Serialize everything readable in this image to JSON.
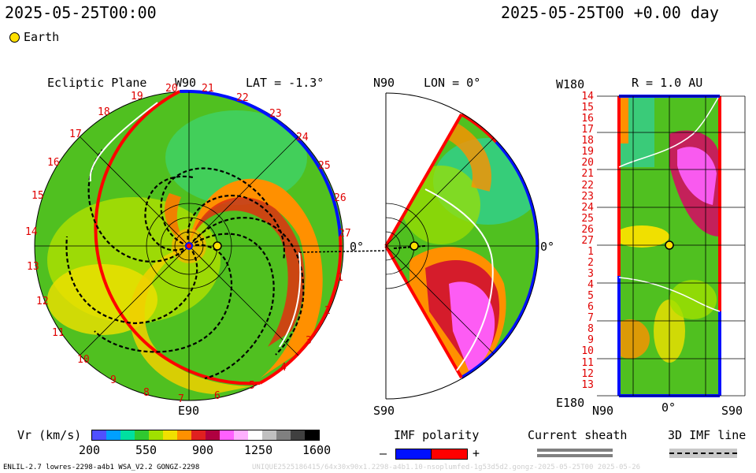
{
  "header": {
    "date_left": "2025-05-25T00:00",
    "date_right": "2025-05-25T00 +0.00 day",
    "legend_label": "Earth"
  },
  "ecliptic": {
    "title": "Ecliptic Plane",
    "top_label": "W90",
    "lat_label": "LAT = -1.3°",
    "bottom_label": "E90",
    "zero_label": "0°",
    "ticks": [
      "20",
      "21",
      "22",
      "23",
      "24",
      "25",
      "26",
      "27",
      "1",
      "2",
      "3",
      "4",
      "5",
      "6",
      "7",
      "8",
      "9",
      "10",
      "11",
      "12",
      "13",
      "14",
      "15",
      "16",
      "17",
      "18",
      "19"
    ]
  },
  "meridional": {
    "top_label": "N90",
    "lon_label": "LON = 0°",
    "bottom_label": "S90",
    "zero_label": "0°"
  },
  "radial": {
    "title": "R = 1.0 AU",
    "top_left_label": "W180",
    "bottom_left_label": "E180",
    "x_labels": [
      "N90",
      "0°",
      "S90"
    ],
    "rows": [
      "14",
      "15",
      "16",
      "17",
      "18",
      "19",
      "20",
      "21",
      "22",
      "23",
      "24",
      "25",
      "26",
      "27",
      "1",
      "2",
      "3",
      "4",
      "5",
      "6",
      "7",
      "8",
      "9",
      "10",
      "11",
      "12",
      "13"
    ]
  },
  "colorbar": {
    "label": "Vr (km/s)",
    "ticks": [
      "200",
      "550",
      "900",
      "1250",
      "1600"
    ],
    "colors": [
      "#5050ff",
      "#00a0ff",
      "#00e0a0",
      "#30c830",
      "#a0e000",
      "#f0e000",
      "#ff9000",
      "#e02020",
      "#b00040",
      "#ff60ff",
      "#ffb0ff",
      "#ffffff",
      "#c0c0c0",
      "#808080",
      "#404040",
      "#000000"
    ]
  },
  "imf": {
    "label": "IMF polarity",
    "minus": "–",
    "plus": "+",
    "negative_color": "#0010ff",
    "positive_color": "#ff0000"
  },
  "sheath": {
    "label": "Current sheath"
  },
  "imf3d": {
    "label": "3D IMF line"
  },
  "footer": {
    "model": "ENLIL-2.7 lowres-2298-a4b1 WSA_V2.2 GONGZ-2298",
    "watermark": "UNIQUE2525186415/64x30x90x1.2298-a4b1.10-nsoplumfed-1g53d5d2.gongz-2025-05-25T00   2025-05-26"
  }
}
